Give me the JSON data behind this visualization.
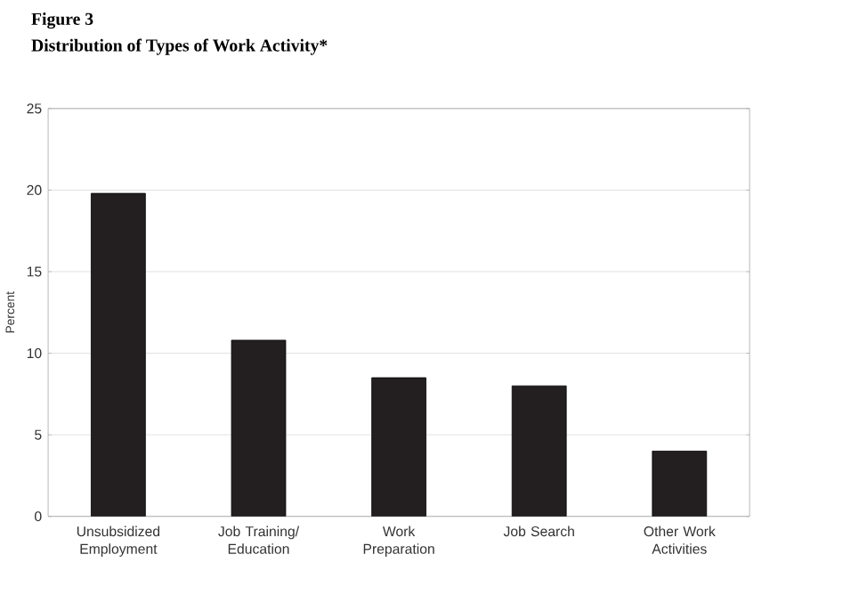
{
  "chart_data": {
    "type": "bar",
    "title": "Figure 3",
    "subtitle": "Distribution of Types of Work Activity*",
    "ylabel": "Percent",
    "categories": [
      "Unsubsidized Employment",
      "Job Training/ Education",
      "Work Preparation",
      "Job Search",
      "Other Work Activities"
    ],
    "values": [
      19.8,
      10.8,
      8.5,
      8.0,
      4.0
    ],
    "color": "#231f20",
    "ylim": [
      0,
      25
    ],
    "yticks": [
      0,
      5,
      10,
      15,
      20,
      25
    ],
    "grid": "y"
  }
}
